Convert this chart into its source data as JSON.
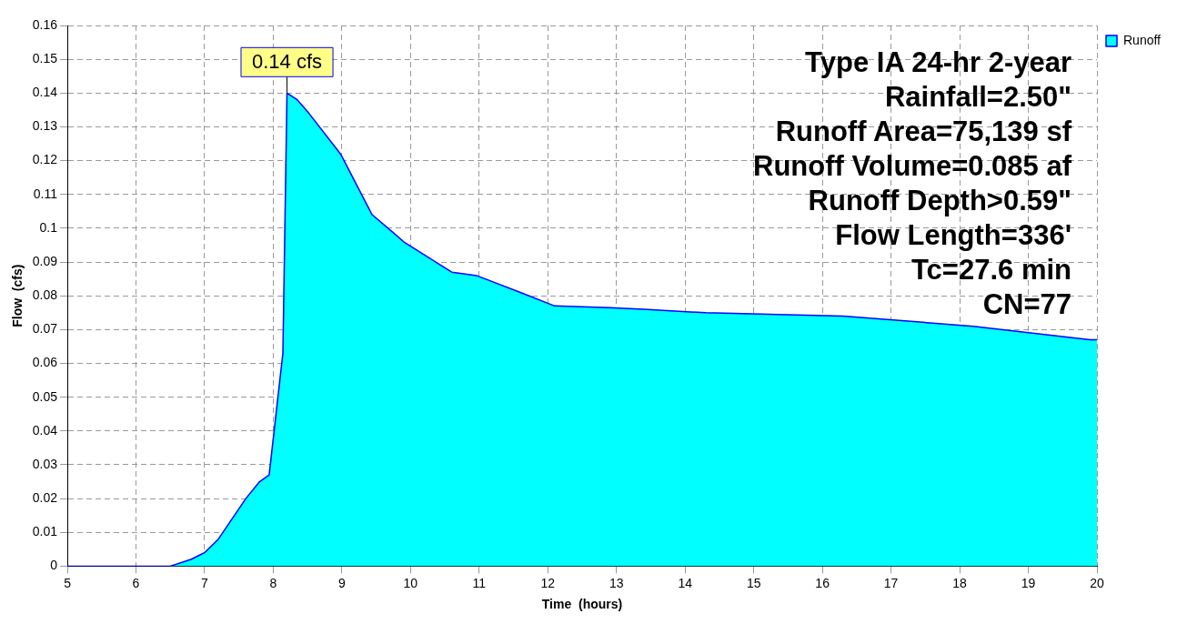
{
  "chart_data": {
    "type": "area",
    "xlabel": "Time  (hours)",
    "ylabel": "Flow  (cfs)",
    "x": [
      5,
      6.5,
      6.8,
      7,
      7.2,
      7.4,
      7.6,
      7.8,
      7.94,
      8.14,
      8.2,
      8.35,
      8.52,
      8.98,
      9.44,
      9.73,
      9.9,
      10.6,
      10.96,
      11.6,
      12.1,
      12.9,
      13.4,
      14.3,
      16.3,
      18.2,
      19.9,
      20
    ],
    "series": [
      {
        "name": "Runoff",
        "color": "#00ffff",
        "values": [
          0,
          0,
          0.002,
          0.004,
          0.008,
          0.014,
          0.02,
          0.025,
          0.027,
          0.063,
          0.14,
          0.138,
          0.134,
          0.122,
          0.104,
          0.099,
          0.096,
          0.087,
          0.086,
          0.081,
          0.077,
          0.0765,
          0.076,
          0.075,
          0.074,
          0.071,
          0.067,
          0.067
        ]
      }
    ],
    "xlim": [
      5,
      20
    ],
    "xticks": [
      5,
      6,
      7,
      8,
      9,
      10,
      11,
      12,
      13,
      14,
      15,
      16,
      17,
      18,
      19,
      20
    ],
    "ylim": [
      0,
      0.16
    ],
    "yticks": [
      0,
      0.01,
      0.02,
      0.03,
      0.04,
      0.05,
      0.06,
      0.07,
      0.08,
      0.09,
      0.1,
      0.11,
      0.12,
      0.13,
      0.14,
      0.15,
      0.16
    ],
    "grid": true,
    "legend": "top right",
    "marker": "none",
    "annotations": [
      {
        "text": "0.14 cfs",
        "x": 8.2,
        "y": 0.14
      },
      "Type IA 24-hr 2-year",
      "Rainfall=2.50\"",
      "Runoff Area=75,139 sf",
      "Runoff Volume=0.085 af",
      "Runoff Depth>0.59\"",
      "Flow Length=336'",
      "Tc=27.6 min",
      "CN=77"
    ]
  }
}
